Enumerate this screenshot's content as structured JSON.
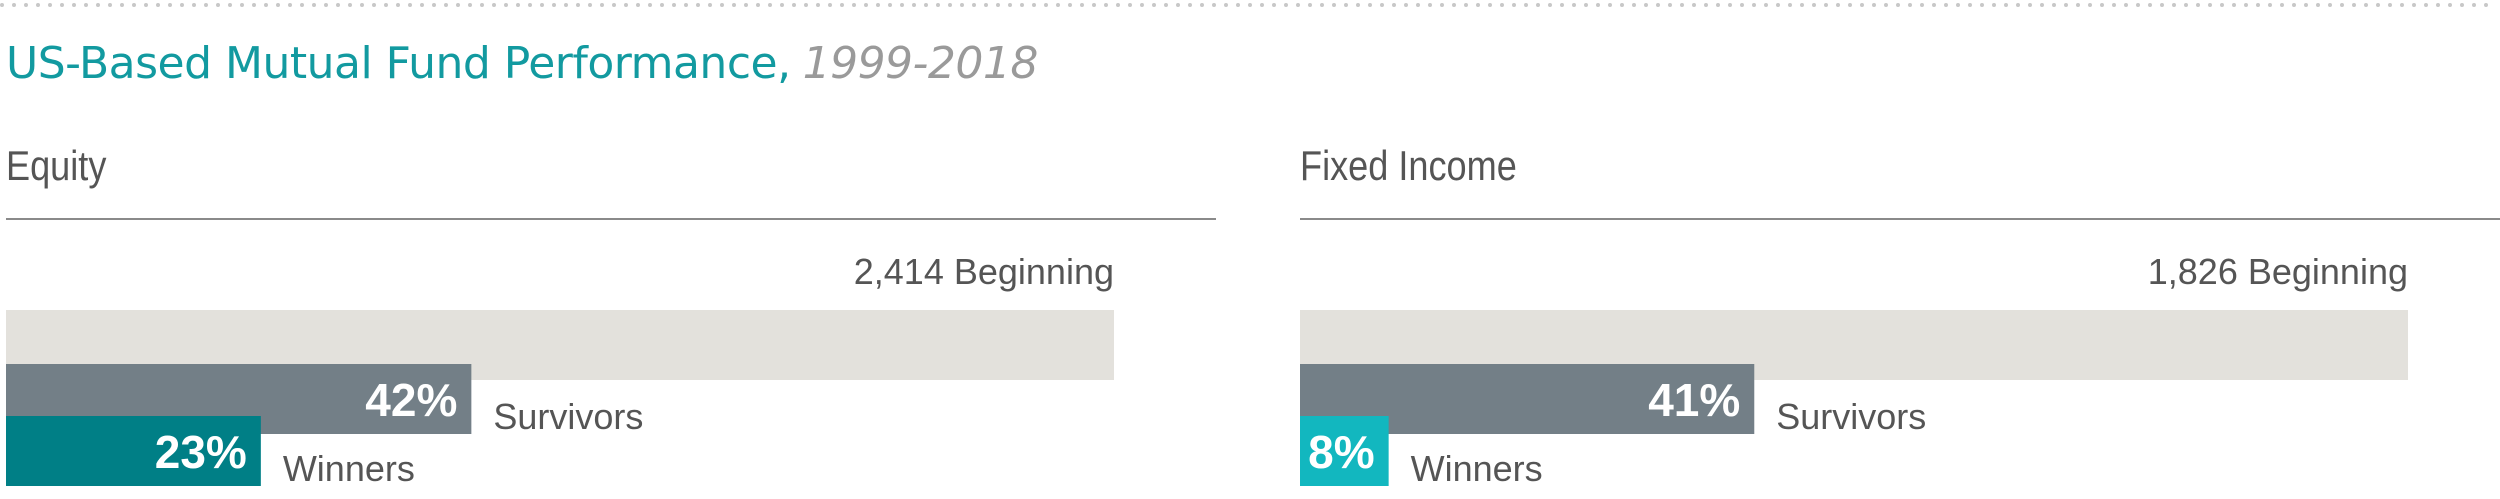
{
  "title": {
    "main": "US-Based Mutual Fund Performance,",
    "years": "1999-2018"
  },
  "colors": {
    "title": "#129aa0",
    "years": "#9a9a9a",
    "beginning_bar": "#e3e1dc",
    "survivors_bar": "#737f87",
    "equity_winners_bar": "#007f86",
    "fixed_income_winners_bar": "#12b7bf",
    "text_dark": "#555555",
    "bar_label": "#ffffff"
  },
  "chart_data": [
    {
      "type": "bar",
      "title": "Equity",
      "beginning": {
        "value": 2414,
        "label": "2,414 Beginning"
      },
      "bars": [
        {
          "name": "Survivors",
          "value": 42,
          "label": "42%"
        },
        {
          "name": "Winners",
          "value": 23,
          "label": "23%"
        }
      ],
      "xlim": [
        0,
        100
      ]
    },
    {
      "type": "bar",
      "title": "Fixed Income",
      "beginning": {
        "value": 1826,
        "label": "1,826 Beginning"
      },
      "bars": [
        {
          "name": "Survivors",
          "value": 41,
          "label": "41%"
        },
        {
          "name": "Winners",
          "value": 8,
          "label": "8%"
        }
      ],
      "xlim": [
        0,
        100
      ]
    }
  ]
}
